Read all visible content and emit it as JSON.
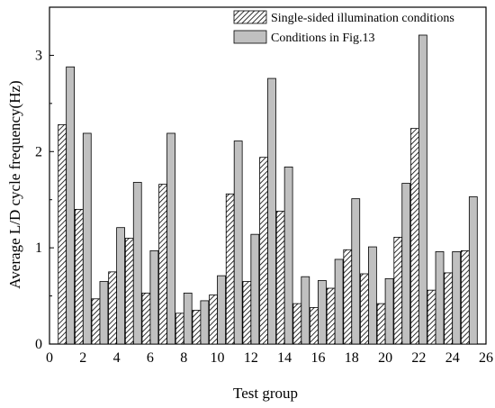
{
  "chart_data": {
    "type": "bar",
    "xlabel": "Test group",
    "ylabel": "Average L/D cycle frequency(Hz)",
    "xlim": [
      0,
      26
    ],
    "ylim": [
      0,
      3.5
    ],
    "xticks": [
      0,
      2,
      4,
      6,
      8,
      10,
      12,
      14,
      16,
      18,
      20,
      22,
      24,
      26
    ],
    "yticks": [
      0,
      1,
      2,
      3
    ],
    "legend_position": "top-right",
    "categories": [
      1,
      2,
      3,
      4,
      5,
      6,
      7,
      8,
      9,
      10,
      11,
      12,
      13,
      14,
      15,
      16,
      17,
      18,
      19,
      20,
      21,
      22,
      23,
      24,
      25
    ],
    "series": [
      {
        "name": "Single-sided illumination conditions",
        "pattern": "hatched",
        "color": "#ffffff",
        "values": [
          2.28,
          1.4,
          0.47,
          0.75,
          1.1,
          0.53,
          1.66,
          0.32,
          0.35,
          0.51,
          1.56,
          0.65,
          1.94,
          1.38,
          0.42,
          0.38,
          0.58,
          0.98,
          0.73,
          0.42,
          1.11,
          2.24,
          0.56,
          0.74,
          0.97
        ]
      },
      {
        "name": "Conditions in Fig.13",
        "pattern": "solid",
        "color": "#c0c0c0",
        "values": [
          2.88,
          2.19,
          0.65,
          1.21,
          1.68,
          0.97,
          2.19,
          0.53,
          0.45,
          0.71,
          2.11,
          1.14,
          2.76,
          1.84,
          0.7,
          0.66,
          0.88,
          1.51,
          1.01,
          0.68,
          1.67,
          3.21,
          0.96,
          0.96,
          1.53
        ]
      }
    ]
  }
}
